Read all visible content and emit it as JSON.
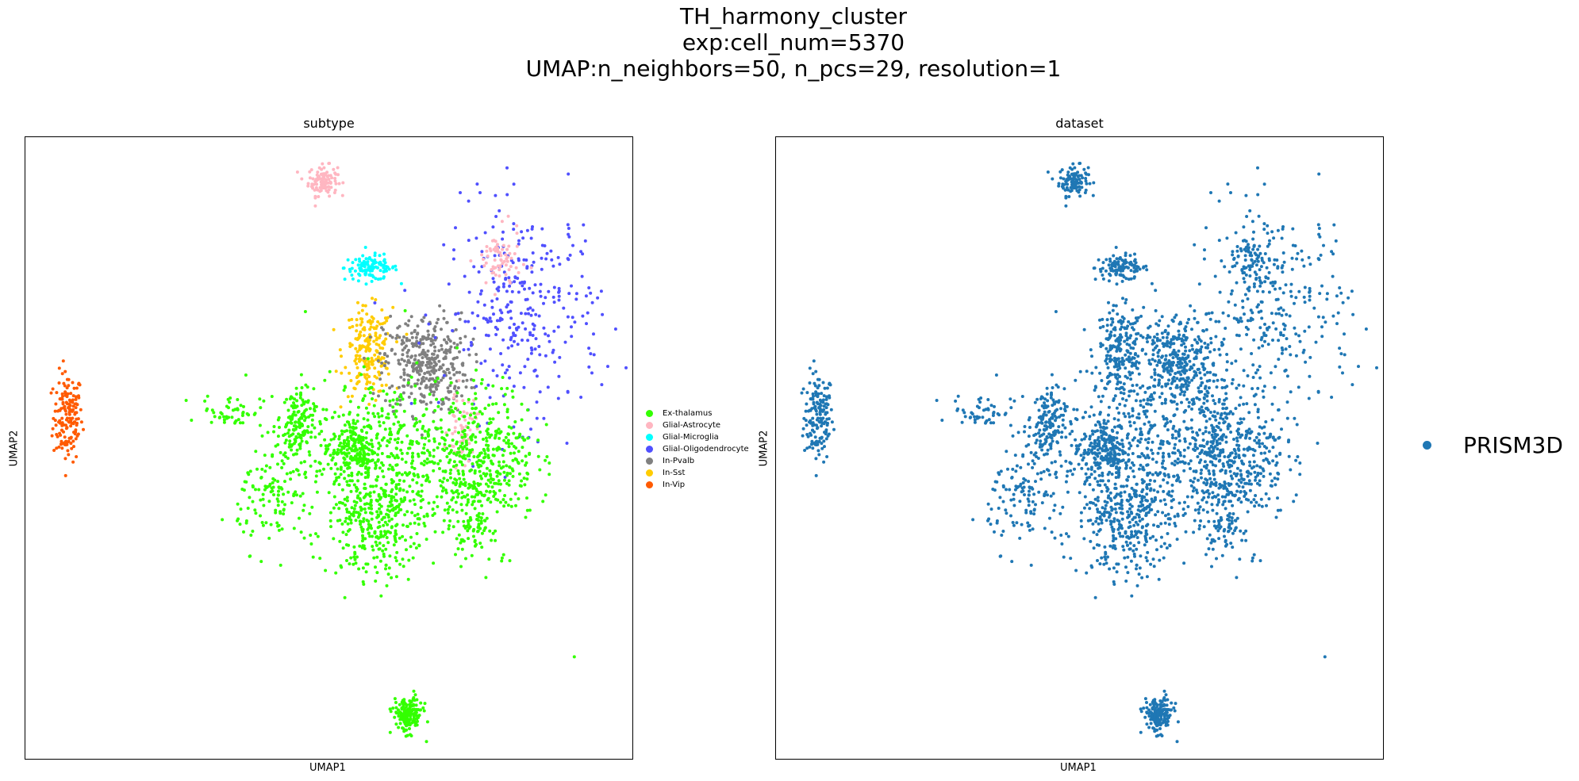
{
  "suptitle": {
    "line1": "TH_harmony_cluster",
    "line2": "exp:cell_num=5370",
    "line3": "UMAP:n_neighbors=50, n_pcs=29, resolution=1"
  },
  "chart_data": [
    {
      "type": "scatter",
      "title": "subtype",
      "xlabel": "UMAP1",
      "ylabel": "UMAP2",
      "ticks": "none",
      "legend_placement": "right",
      "legend": [
        {
          "label": "Ex-thalamus",
          "color": "#33ff00"
        },
        {
          "label": "Glial-Astrocyte",
          "color": "#ffb6c1"
        },
        {
          "label": "Glial-Microglia",
          "color": "#00ffff"
        },
        {
          "label": "Glial-Oligodendrocyte",
          "color": "#5050ff"
        },
        {
          "label": "In-Pvalb",
          "color": "#808080"
        },
        {
          "label": "In-Sst",
          "color": "#ffcc00"
        },
        {
          "label": "In-Vip",
          "color": "#ff5a00"
        }
      ],
      "clusters": [
        {
          "label": "In-Vip",
          "cx": 0.07,
          "cy": 0.55,
          "sx": 0.012,
          "sy": 0.036,
          "n": 160
        },
        {
          "label": "Glial-Astrocyte",
          "cx": 0.49,
          "cy": 0.93,
          "sx": 0.012,
          "sy": 0.012,
          "n": 110
        },
        {
          "label": "Glial-Microglia",
          "cx": 0.57,
          "cy": 0.79,
          "sx": 0.022,
          "sy": 0.01,
          "n": 110
        },
        {
          "label": "In-Sst",
          "cx": 0.565,
          "cy": 0.655,
          "sx": 0.02,
          "sy": 0.035,
          "n": 200
        },
        {
          "label": "In-Pvalb",
          "cx": 0.66,
          "cy": 0.635,
          "sx": 0.035,
          "sy": 0.04,
          "n": 380
        },
        {
          "label": "Glial-Oligodendrocyte",
          "cx": 0.82,
          "cy": 0.72,
          "sx": 0.065,
          "sy": 0.085,
          "n": 320
        },
        {
          "label": "Glial-Astrocyte",
          "cx": 0.78,
          "cy": 0.8,
          "sx": 0.018,
          "sy": 0.025,
          "n": 70
        },
        {
          "label": "Glial-Astrocyte",
          "cx": 0.72,
          "cy": 0.53,
          "sx": 0.012,
          "sy": 0.03,
          "n": 60
        },
        {
          "label": "Ex-thalamus",
          "cx": 0.34,
          "cy": 0.56,
          "sx": 0.025,
          "sy": 0.013,
          "n": 50
        },
        {
          "label": "Ex-thalamus",
          "cx": 0.445,
          "cy": 0.535,
          "sx": 0.015,
          "sy": 0.03,
          "n": 150
        },
        {
          "label": "Ex-thalamus",
          "cx": 0.54,
          "cy": 0.5,
          "sx": 0.018,
          "sy": 0.025,
          "n": 160
        },
        {
          "label": "Ex-thalamus",
          "cx": 0.6,
          "cy": 0.47,
          "sx": 0.07,
          "sy": 0.07,
          "n": 600
        },
        {
          "label": "Ex-thalamus",
          "cx": 0.76,
          "cy": 0.49,
          "sx": 0.04,
          "sy": 0.055,
          "n": 350
        },
        {
          "label": "Ex-thalamus",
          "cx": 0.41,
          "cy": 0.42,
          "sx": 0.03,
          "sy": 0.04,
          "n": 120
        },
        {
          "label": "Ex-thalamus",
          "cx": 0.57,
          "cy": 0.37,
          "sx": 0.035,
          "sy": 0.04,
          "n": 200
        },
        {
          "label": "Ex-thalamus",
          "cx": 0.74,
          "cy": 0.38,
          "sx": 0.015,
          "sy": 0.03,
          "n": 80
        },
        {
          "label": "Ex-thalamus",
          "cx": 0.63,
          "cy": 0.07,
          "sx": 0.012,
          "sy": 0.014,
          "n": 170
        },
        {
          "label": "Ex-thalamus",
          "cx": 0.9,
          "cy": 0.165,
          "sx": 0.001,
          "sy": 0.001,
          "n": 1
        }
      ]
    },
    {
      "type": "scatter",
      "title": "dataset",
      "xlabel": "UMAP1",
      "ylabel": "UMAP2",
      "ticks": "none",
      "legend_placement": "right",
      "legend": [
        {
          "label": "PRISM3D",
          "color": "#1f77b4"
        }
      ]
    }
  ]
}
